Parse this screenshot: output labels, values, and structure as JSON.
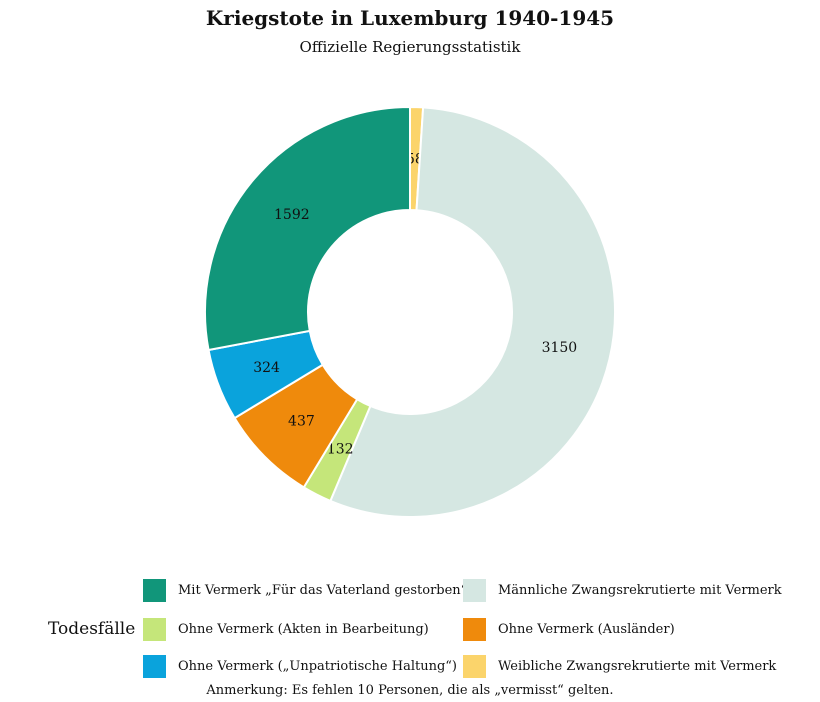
{
  "chart_data": {
    "type": "pie",
    "donut": true,
    "title": "Kriegstote in Luxemburg 1940-1945",
    "subtitle": "Offizielle Regierungsstatistik",
    "legend_title": "Todesfälle",
    "legend_position": "bottom",
    "slices": [
      {
        "label": "Weibliche Zwangsrekrutierte mit Vermerk",
        "value": 58,
        "color": "#fbd46b"
      },
      {
        "label": "Männliche Zwangsrekrutierte mit Vermerk",
        "value": 3150,
        "color": "#d5e7e2"
      },
      {
        "label": "Ohne Vermerk (Akten in Bearbeitung)",
        "value": 132,
        "color": "#c5e67a"
      },
      {
        "label": "Ohne Vermerk (Ausländer)",
        "value": 437,
        "color": "#ef8a0c"
      },
      {
        "label": "Ohne Vermerk („Unpatriotische Haltung“)",
        "value": 324,
        "color": "#0aa3dc"
      },
      {
        "label": "Mit Vermerk „Für das Vaterland gestorben“",
        "value": 1592,
        "color": "#11967a"
      }
    ],
    "legend_order": [
      5,
      2,
      4,
      1,
      3,
      0
    ],
    "note": "Anmerkung: Es fehlen 10 Personen, die als „vermisst“ gelten."
  }
}
